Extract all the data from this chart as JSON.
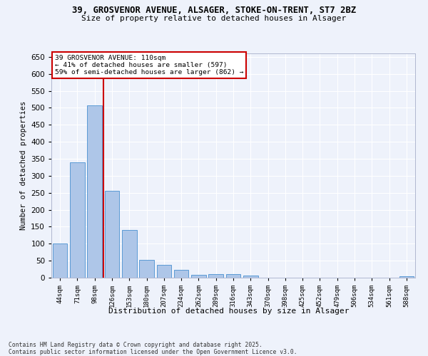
{
  "title1": "39, GROSVENOR AVENUE, ALSAGER, STOKE-ON-TRENT, ST7 2BZ",
  "title2": "Size of property relative to detached houses in Alsager",
  "xlabel": "Distribution of detached houses by size in Alsager",
  "ylabel": "Number of detached properties",
  "categories": [
    "44sqm",
    "71sqm",
    "98sqm",
    "126sqm",
    "153sqm",
    "180sqm",
    "207sqm",
    "234sqm",
    "262sqm",
    "289sqm",
    "316sqm",
    "343sqm",
    "370sqm",
    "398sqm",
    "425sqm",
    "452sqm",
    "479sqm",
    "506sqm",
    "534sqm",
    "561sqm",
    "588sqm"
  ],
  "values": [
    100,
    340,
    507,
    255,
    140,
    53,
    37,
    24,
    9,
    10,
    10,
    6,
    0,
    0,
    0,
    0,
    0,
    0,
    0,
    0,
    5
  ],
  "bar_color": "#aec6e8",
  "bar_edge_color": "#5b9bd5",
  "bg_color": "#eef2fb",
  "grid_color": "#ffffff",
  "vline_x": 2.5,
  "vline_color": "#cc0000",
  "annotation_text": "39 GROSVENOR AVENUE: 110sqm\n← 41% of detached houses are smaller (597)\n59% of semi-detached houses are larger (862) →",
  "annotation_box_color": "#ffffff",
  "annotation_box_edge": "#cc0000",
  "footer1": "Contains HM Land Registry data © Crown copyright and database right 2025.",
  "footer2": "Contains public sector information licensed under the Open Government Licence v3.0.",
  "ylim": [
    0,
    660
  ],
  "yticks": [
    0,
    50,
    100,
    150,
    200,
    250,
    300,
    350,
    400,
    450,
    500,
    550,
    600,
    650
  ]
}
